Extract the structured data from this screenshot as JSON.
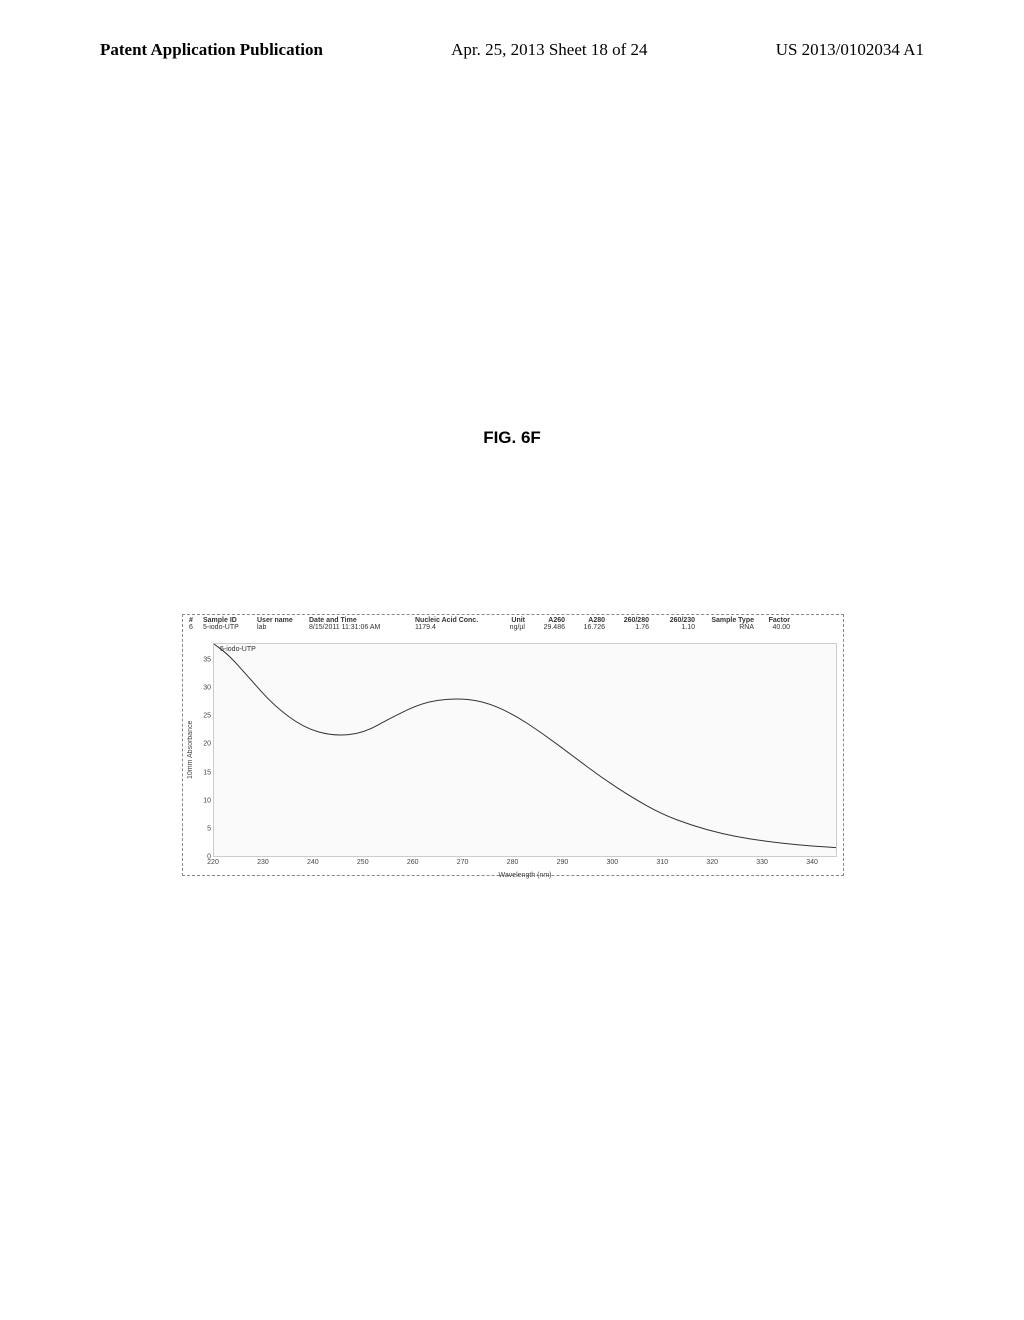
{
  "header": {
    "left": "Patent Application Publication",
    "center": "Apr. 25, 2013  Sheet 18 of 24",
    "right": "US 2013/0102034 A1"
  },
  "figure": {
    "label": "FIG. 6F"
  },
  "table": {
    "headers": {
      "num": "#",
      "sample_id": "Sample ID",
      "user": "User name",
      "datetime": "Date and Time",
      "conc": "Nucleic Acid Conc.",
      "unit": "Unit",
      "a260": "A260",
      "a280": "A280",
      "r260_280": "260/280",
      "r260_230": "260/230",
      "sample_type": "Sample Type",
      "factor": "Factor"
    },
    "row": {
      "num": "6",
      "sample_id": "5-iodo-UTP",
      "user": "lab",
      "datetime": "8/15/2011 11:31:06 AM",
      "conc": "1179.4",
      "unit": "ng/µl",
      "a260": "29.486",
      "a280": "16.726",
      "r260_280": "1.76",
      "r260_230": "1.10",
      "sample_type": "RNA",
      "factor": "40.00"
    }
  },
  "chart": {
    "type": "line",
    "legend": "5-iodo-UTP",
    "xlabel": "Wavelength (nm)",
    "ylabel": "10mm Absorbance",
    "xlim": [
      220,
      345
    ],
    "ylim": [
      0,
      38
    ],
    "xticks": [
      220,
      230,
      240,
      250,
      260,
      270,
      280,
      290,
      300,
      310,
      320,
      330,
      340
    ],
    "yticks": [
      0,
      5,
      10,
      15,
      20,
      25,
      30,
      35
    ],
    "curve_points": [
      [
        220,
        38
      ],
      [
        223,
        36
      ],
      [
        227,
        32
      ],
      [
        232,
        27
      ],
      [
        238,
        23
      ],
      [
        244,
        21.5
      ],
      [
        250,
        22
      ],
      [
        256,
        25
      ],
      [
        262,
        27.5
      ],
      [
        268,
        28.3
      ],
      [
        274,
        27.8
      ],
      [
        280,
        25.5
      ],
      [
        286,
        22
      ],
      [
        292,
        18
      ],
      [
        298,
        14
      ],
      [
        304,
        10.5
      ],
      [
        310,
        7.5
      ],
      [
        316,
        5.5
      ],
      [
        322,
        4
      ],
      [
        328,
        3
      ],
      [
        334,
        2.3
      ],
      [
        340,
        1.8
      ],
      [
        345,
        1.5
      ]
    ],
    "line_color": "#333333",
    "line_width": 1,
    "background_color": "#fafafa",
    "border_color": "#cccccc",
    "tick_fontsize": 7,
    "label_fontsize": 7
  }
}
